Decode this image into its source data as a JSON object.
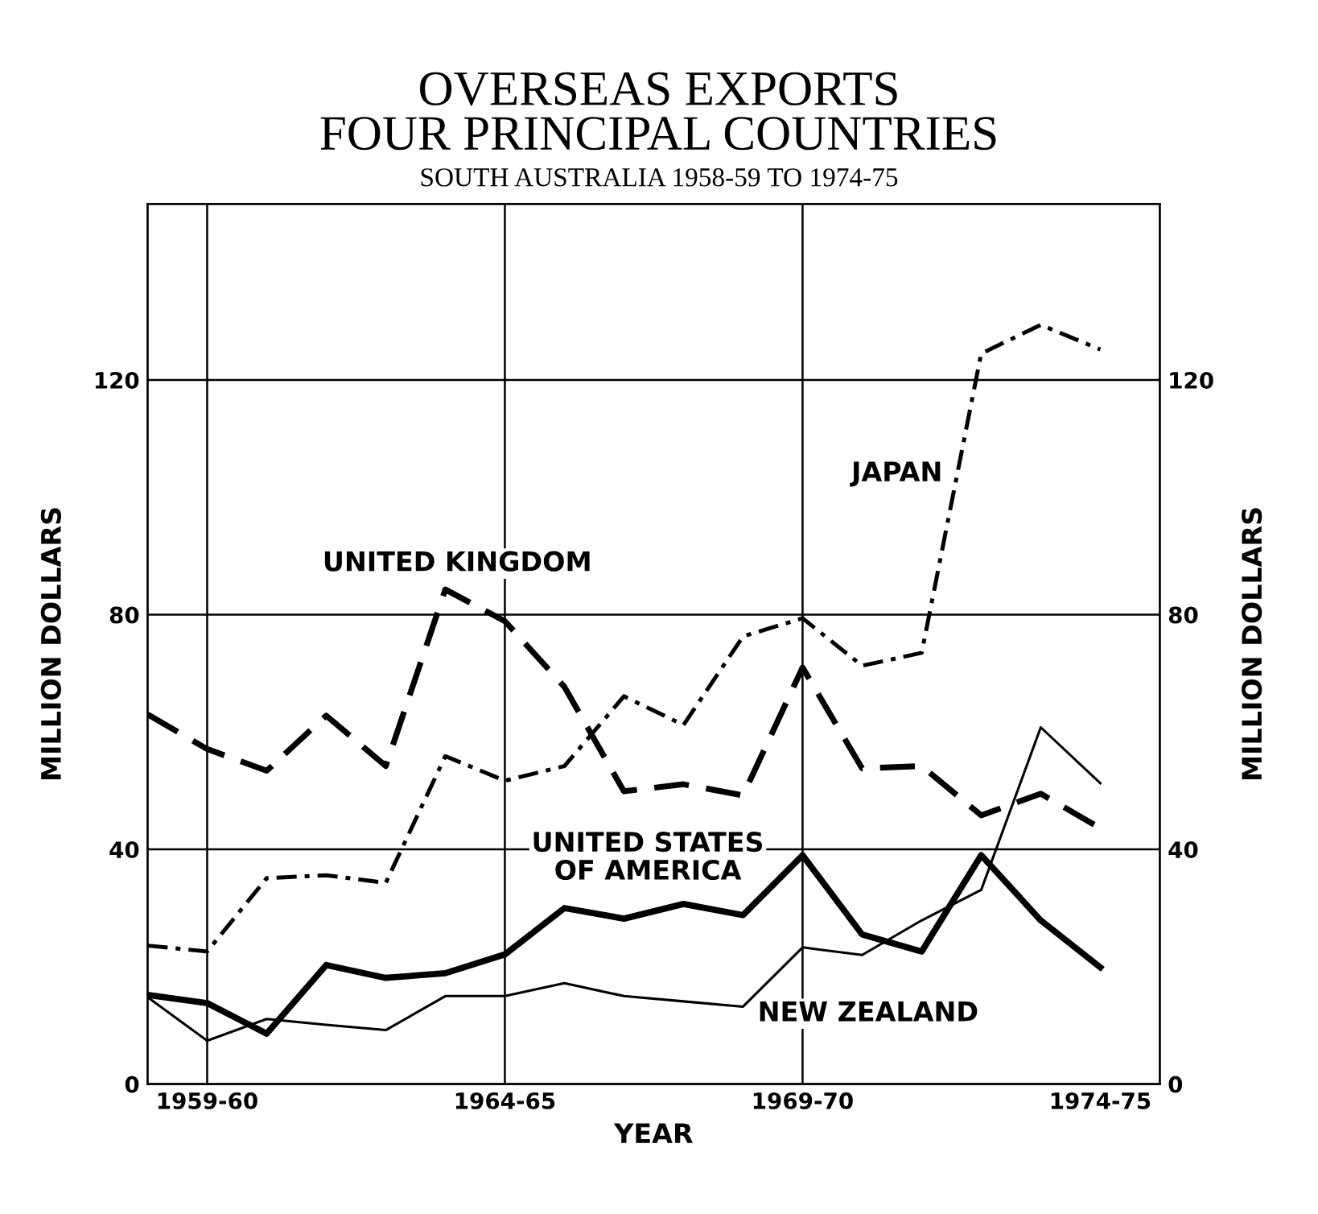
{
  "chart_data": {
    "type": "line",
    "title": "OVERSEAS EXPORTS\nFOUR PRINCIPAL COUNTRIES",
    "subtitle": "SOUTH AUSTRALIA 1958-59 TO 1974-75",
    "xlabel": "YEAR",
    "ylabel": "MILLION DOLLARS",
    "y2label": "MILLION DOLLARS",
    "categories": [
      null,
      "1959-60",
      null,
      null,
      null,
      null,
      "1964-65",
      null,
      null,
      null,
      null,
      "1969-70",
      null,
      null,
      null,
      null,
      "1974-75"
    ],
    "series": [
      {
        "name": "UNITED KINGDOM",
        "color": "#000000",
        "line_style": "dashed",
        "values": [
          63.0,
          57.1,
          53.4,
          62.8,
          54.2,
          84.3,
          78.9,
          67.7,
          49.9,
          51.1,
          49.2,
          71.0,
          53.8,
          54.2,
          45.8,
          49.5,
          43.6
        ]
      },
      {
        "name": "JAPAN",
        "color": "#000000",
        "line_style": "dashdot",
        "values": [
          23.6,
          22.6,
          35.1,
          35.6,
          34.3,
          55.9,
          51.7,
          54.2,
          66.1,
          61.2,
          76.3,
          79.4,
          71.3,
          73.5,
          124.5,
          129.4,
          125.2
        ]
      },
      {
        "name": "UNITED STATES\nOF AMERICA",
        "color": "#000000",
        "line_style": "solid",
        "values": [
          15.2,
          13.8,
          8.6,
          20.3,
          18.1,
          18.9,
          22.1,
          30.0,
          28.2,
          30.7,
          28.8,
          39.0,
          25.5,
          22.6,
          39.0,
          27.9,
          19.9
        ]
      },
      {
        "name": "NEW ZEALAND",
        "color": "#000000",
        "line_style": "solid",
        "values": [
          14.8,
          7.4,
          11.1,
          10.1,
          9.2,
          15.0,
          15.0,
          17.2,
          15.0,
          14.1,
          13.2,
          23.3,
          22.0,
          27.9,
          33.1,
          60.8,
          51.3
        ]
      }
    ],
    "ylim": [
      0,
      150
    ],
    "yticks": [
      0,
      40,
      80,
      120
    ],
    "y2lim": [
      0,
      150
    ],
    "y2ticks": [
      0,
      40,
      80,
      120
    ],
    "grid": "y",
    "legend": false,
    "marker": "none",
    "ref_lines": [
      {
        "axis": "x",
        "value": "1959-60",
        "color": "#000000"
      },
      {
        "axis": "x",
        "value": "1964-65",
        "color": "#000000"
      },
      {
        "axis": "x",
        "value": "1969-70",
        "color": "#000000"
      }
    ]
  }
}
